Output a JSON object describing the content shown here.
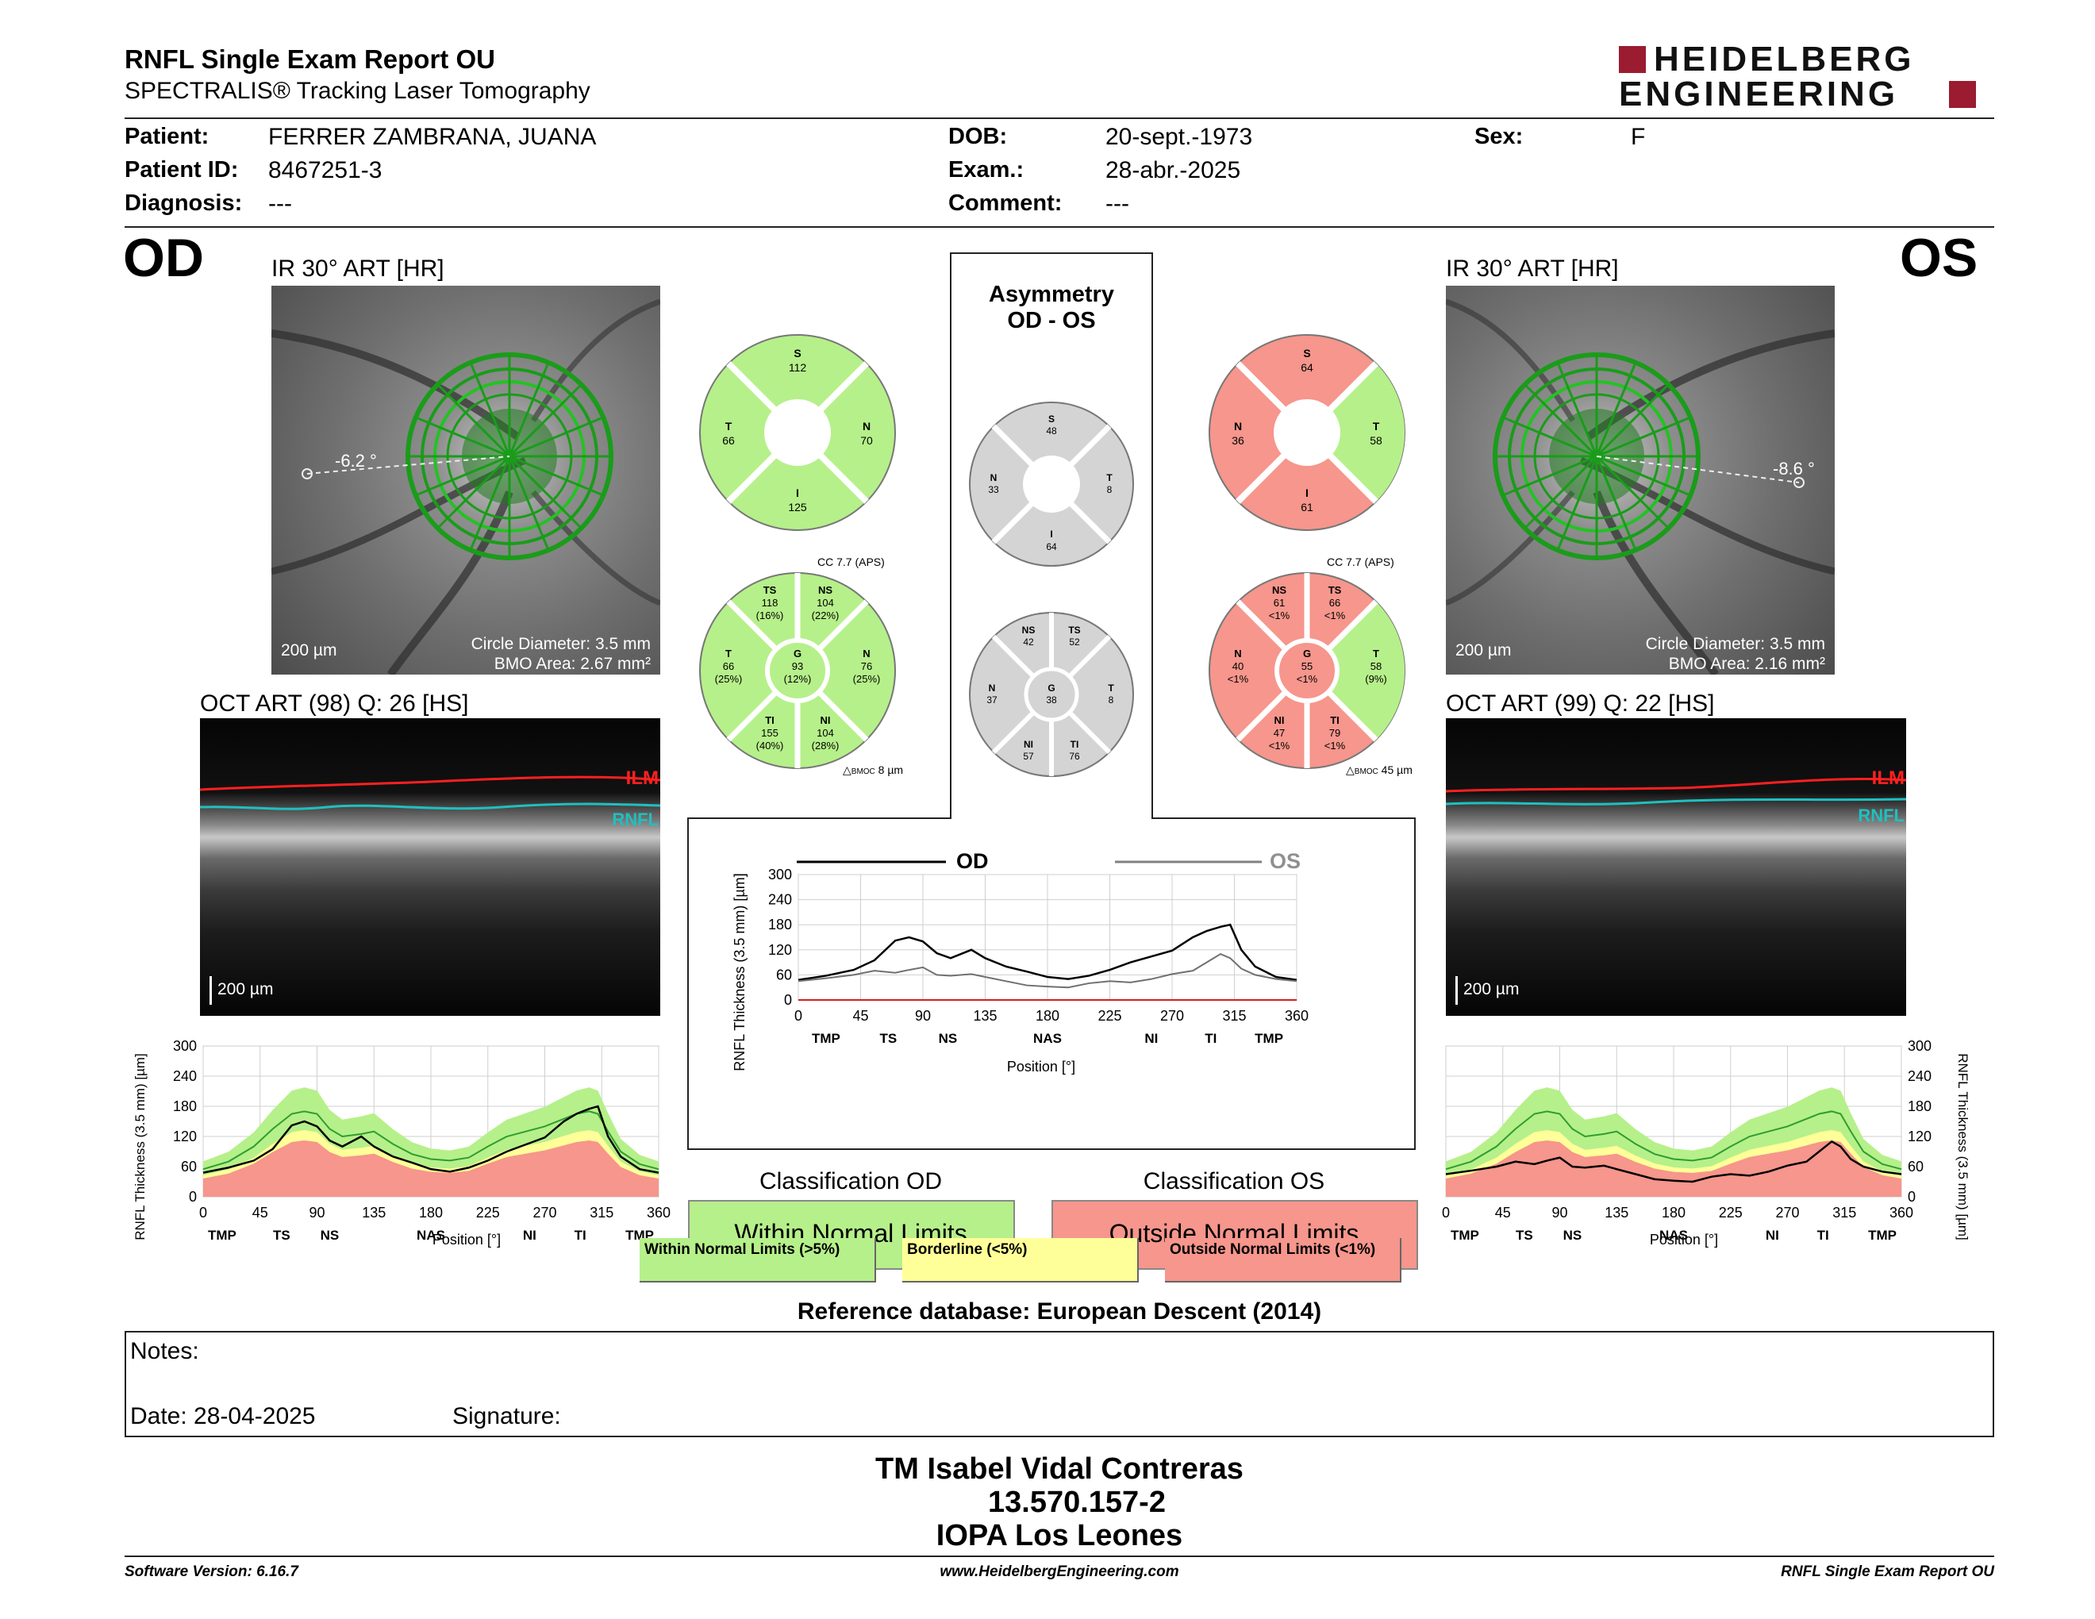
{
  "header": {
    "title": "RNFL Single Exam Report OU",
    "subtitle": "SPECTRALIS® Tracking Laser Tomography",
    "logo_line1": "HEIDELBERG",
    "logo_line2": "ENGINEERING"
  },
  "patient": {
    "name_label": "Patient:",
    "name": "FERRER ZAMBRANA, JUANA",
    "id_label": "Patient ID:",
    "id": "8467251-3",
    "diagnosis_label": "Diagnosis:",
    "diagnosis": "---",
    "dob_label": "DOB:",
    "dob": "20-sept.-1973",
    "exam_label": "Exam.:",
    "exam": "28-abr.-2025",
    "comment_label": "Comment:",
    "comment": "---",
    "sex_label": "Sex:",
    "sex": "F"
  },
  "od": {
    "eye": "OD",
    "ir_title": "IR 30° ART [HR]",
    "angle": "-6.2 °",
    "scale": "200 µm",
    "circle": "Circle Diameter: 3.5 mm",
    "bmo": "BMO Area: 2.67 mm²",
    "oct_title": "OCT ART (98) Q: 26 [HS]",
    "oct_scale": "200 µm",
    "ilm": "ILM",
    "rnfl": "RNFL",
    "classification_title": "Classification OD",
    "classification": "Within Normal Limits",
    "sectors4": {
      "S": "112",
      "N": "70",
      "I": "125",
      "T": "66"
    },
    "cc": "CC 7.7 (APS)",
    "bmoc": "8 µm",
    "sectors6": {
      "TS": [
        "118",
        "(16%)"
      ],
      "NS": [
        "104",
        "(22%)"
      ],
      "N": [
        "76",
        "(25%)"
      ],
      "NI": [
        "104",
        "(28%)"
      ],
      "TI": [
        "155",
        "(40%)"
      ],
      "T": [
        "66",
        "(25%)"
      ],
      "G": [
        "93",
        "(12%)"
      ]
    }
  },
  "os": {
    "eye": "OS",
    "ir_title": "IR 30° ART [HR]",
    "angle": "-8.6 °",
    "scale": "200 µm",
    "circle": "Circle Diameter: 3.5 mm",
    "bmo": "BMO Area: 2.16 mm²",
    "oct_title": "OCT ART (99) Q: 22 [HS]",
    "oct_scale": "200 µm",
    "ilm": "ILM",
    "rnfl": "RNFL",
    "classification_title": "Classification OS",
    "classification": "Outside Normal Limits",
    "sectors4": {
      "S": "64",
      "N": "36",
      "I": "61",
      "T": "58"
    },
    "cc": "CC 7.7 (APS)",
    "bmoc": "45 µm",
    "sectors6": {
      "NS": [
        "61",
        "<1%"
      ],
      "TS": [
        "66",
        "<1%"
      ],
      "T": [
        "58",
        "(9%)"
      ],
      "TI": [
        "79",
        "<1%"
      ],
      "NI": [
        "47",
        "<1%"
      ],
      "N": [
        "40",
        "<1%"
      ],
      "G": [
        "55",
        "<1%"
      ]
    }
  },
  "asymmetry": {
    "title1": "Asymmetry",
    "title2": "OD - OS",
    "sectors4": {
      "S": "48",
      "N": "33",
      "I": "64",
      "T": "8"
    },
    "sectors6": {
      "NS": "42",
      "TS": "52",
      "T": "8",
      "TI": "76",
      "NI": "57",
      "N": "37",
      "G": "38"
    }
  },
  "legend": {
    "normal": "Within Normal Limits (>5%)",
    "borderline": "Borderline (<5%)",
    "outside": "Outside Normal Limits (<1%)"
  },
  "reference": "Reference database: European Descent (2014)",
  "notes": {
    "label": "Notes:",
    "date": "Date: 28-04-2025",
    "signature": "Signature:"
  },
  "stamp": {
    "name": "TM Isabel Vidal Contreras",
    "rut": "13.570.157-2",
    "place": "IOPA Los Leones"
  },
  "footer": {
    "software": "Software Version: 6.16.7",
    "url": "www.HeidelbergEngineering.com",
    "report": "RNFL Single Exam Report OU"
  },
  "colors": {
    "normal": "#b6f08a",
    "borderline": "#ffff99",
    "outside": "#f6968c",
    "grey": "#d4d4d4",
    "brand": "#9b1b30",
    "od_line": "#000000",
    "os_line": "#707070"
  },
  "chart_data": [
    {
      "type": "line",
      "title": "OD",
      "ylabel": "RNFL Thickness (3.5 mm) [µm]",
      "xlabel": "Position [°]",
      "xlim": [
        0,
        360
      ],
      "ylim": [
        0,
        300
      ],
      "xticks": [
        0,
        45,
        90,
        135,
        180,
        225,
        270,
        315,
        360
      ],
      "yticks": [
        0,
        60,
        120,
        180,
        240,
        300
      ],
      "sector_labels": [
        "TMP",
        "TS",
        "NS",
        "NAS",
        "NI",
        "TI",
        "TMP"
      ],
      "sector_positions": [
        15,
        62,
        100,
        180,
        258,
        298,
        345
      ],
      "x": [
        0,
        20,
        40,
        55,
        70,
        80,
        90,
        100,
        110,
        125,
        135,
        150,
        165,
        180,
        195,
        210,
        225,
        240,
        255,
        270,
        285,
        295,
        305,
        312,
        320,
        330,
        345,
        360
      ],
      "series": [
        {
          "name": "measured",
          "values": [
            48,
            58,
            72,
            95,
            142,
            150,
            140,
            112,
            100,
            120,
            100,
            80,
            68,
            55,
            50,
            58,
            72,
            90,
            104,
            118,
            150,
            165,
            175,
            180,
            120,
            80,
            55,
            48
          ]
        },
        {
          "name": "normal_mean",
          "values": [
            55,
            70,
            100,
            135,
            165,
            170,
            165,
            135,
            120,
            125,
            130,
            105,
            85,
            75,
            72,
            78,
            100,
            120,
            130,
            140,
            155,
            165,
            170,
            165,
            130,
            90,
            65,
            55
          ]
        }
      ]
    },
    {
      "type": "line",
      "title": "OD OS",
      "ylabel": "RNFL Thickness (3.5 mm) [µm]",
      "xlabel": "Position [°]",
      "xlim": [
        0,
        360
      ],
      "ylim": [
        0,
        300
      ],
      "xticks": [
        0,
        45,
        90,
        135,
        180,
        225,
        270,
        315,
        360
      ],
      "yticks": [
        0,
        60,
        120,
        180,
        240,
        300
      ],
      "sector_labels": [
        "TMP",
        "TS",
        "NS",
        "NAS",
        "NI",
        "TI",
        "TMP"
      ],
      "sector_positions": [
        20,
        65,
        108,
        180,
        255,
        298,
        340
      ],
      "x": [
        0,
        20,
        40,
        55,
        70,
        80,
        90,
        100,
        110,
        125,
        135,
        150,
        165,
        180,
        195,
        210,
        225,
        240,
        255,
        270,
        285,
        295,
        305,
        312,
        320,
        330,
        345,
        360
      ],
      "series": [
        {
          "name": "OD",
          "values": [
            48,
            58,
            72,
            95,
            142,
            150,
            140,
            112,
            100,
            120,
            100,
            80,
            68,
            55,
            50,
            58,
            72,
            90,
            104,
            118,
            150,
            165,
            175,
            180,
            120,
            80,
            55,
            48
          ]
        },
        {
          "name": "OS",
          "values": [
            45,
            52,
            60,
            70,
            65,
            72,
            78,
            60,
            58,
            62,
            55,
            45,
            35,
            32,
            30,
            40,
            45,
            42,
            50,
            62,
            70,
            90,
            110,
            100,
            75,
            60,
            50,
            45
          ]
        }
      ]
    },
    {
      "type": "line",
      "title": "OS",
      "ylabel": "RNFL Thickness (3.5 mm) [µm]",
      "xlabel": "Position [°]",
      "xlim": [
        0,
        360
      ],
      "ylim": [
        0,
        300
      ],
      "xticks": [
        0,
        45,
        90,
        135,
        180,
        225,
        270,
        315,
        360
      ],
      "yticks": [
        0,
        60,
        120,
        180,
        240,
        300
      ],
      "sector_labels": [
        "TMP",
        "TS",
        "NS",
        "NAS",
        "NI",
        "TI",
        "TMP"
      ],
      "sector_positions": [
        15,
        62,
        100,
        180,
        258,
        298,
        345
      ],
      "x": [
        0,
        20,
        40,
        55,
        70,
        80,
        90,
        100,
        110,
        125,
        135,
        150,
        165,
        180,
        195,
        210,
        225,
        240,
        255,
        270,
        285,
        295,
        305,
        312,
        320,
        330,
        345,
        360
      ],
      "series": [
        {
          "name": "measured",
          "values": [
            45,
            52,
            60,
            70,
            65,
            72,
            78,
            60,
            58,
            62,
            55,
            45,
            35,
            32,
            30,
            40,
            45,
            42,
            50,
            62,
            70,
            90,
            110,
            100,
            75,
            60,
            50,
            45
          ]
        },
        {
          "name": "normal_mean",
          "values": [
            55,
            70,
            100,
            135,
            165,
            170,
            165,
            135,
            120,
            125,
            130,
            105,
            85,
            75,
            72,
            78,
            100,
            120,
            130,
            140,
            155,
            165,
            170,
            165,
            130,
            90,
            65,
            55
          ]
        }
      ]
    }
  ]
}
